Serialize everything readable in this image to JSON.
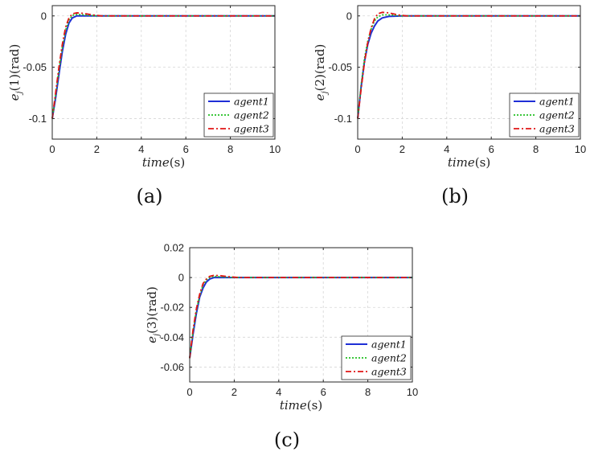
{
  "chart_data": [
    {
      "type": "line",
      "caption": "(a)",
      "xlabel": "time(s)",
      "xlabel_parts": [
        "time",
        "(s)"
      ],
      "ylabel": "e_j(1)(rad)",
      "ylabel_parts": [
        "e",
        "j",
        "(1)(rad)"
      ],
      "xlim": [
        0,
        10
      ],
      "ylim": [
        -0.12,
        0.01
      ],
      "xticks": [
        0,
        2,
        4,
        6,
        8,
        10
      ],
      "xtick_labels": [
        "0",
        "2",
        "4",
        "6",
        "8",
        "10"
      ],
      "yticks": [
        -0.1,
        -0.05,
        0
      ],
      "ytick_labels": [
        "-0.1",
        "-0.05",
        "0"
      ],
      "grid": true,
      "legend_position": "bottom-right",
      "series": [
        {
          "name": "agent1",
          "color": "#1f2fd6",
          "style": "solid",
          "x": [
            0,
            0.15,
            0.3,
            0.45,
            0.6,
            0.75,
            0.9,
            1.1,
            1.4,
            2,
            10
          ],
          "y": [
            -0.1,
            -0.08,
            -0.057,
            -0.035,
            -0.018,
            -0.007,
            -0.002,
            0,
            0,
            0,
            0
          ]
        },
        {
          "name": "agent2",
          "color": "#22c022",
          "style": "dotted",
          "x": [
            0,
            0.15,
            0.3,
            0.45,
            0.6,
            0.75,
            0.9,
            1.1,
            1.4,
            2,
            10
          ],
          "y": [
            -0.1,
            -0.077,
            -0.053,
            -0.031,
            -0.014,
            -0.004,
            0.0005,
            0.0015,
            0.001,
            0,
            0
          ]
        },
        {
          "name": "agent3",
          "color": "#e01515",
          "style": "dashdot",
          "x": [
            0,
            0.15,
            0.3,
            0.45,
            0.6,
            0.75,
            0.9,
            1.1,
            1.4,
            1.8,
            2.2,
            10
          ],
          "y": [
            -0.1,
            -0.075,
            -0.05,
            -0.028,
            -0.011,
            -0.002,
            0.002,
            0.003,
            0.0025,
            0.001,
            0,
            0
          ]
        }
      ]
    },
    {
      "type": "line",
      "caption": "(b)",
      "xlabel": "time(s)",
      "xlabel_parts": [
        "time",
        "(s)"
      ],
      "ylabel": "e_j(2)(rad)",
      "ylabel_parts": [
        "e",
        "j",
        "(2)(rad)"
      ],
      "xlim": [
        0,
        10
      ],
      "ylim": [
        -0.12,
        0.01
      ],
      "xticks": [
        0,
        2,
        4,
        6,
        8,
        10
      ],
      "xtick_labels": [
        "0",
        "2",
        "4",
        "6",
        "8",
        "10"
      ],
      "yticks": [
        -0.1,
        -0.05,
        0
      ],
      "ytick_labels": [
        "-0.1",
        "-0.05",
        "0"
      ],
      "grid": true,
      "legend_position": "bottom-right",
      "series": [
        {
          "name": "agent1",
          "color": "#1f2fd6",
          "style": "solid",
          "x": [
            0,
            0.15,
            0.3,
            0.45,
            0.6,
            0.75,
            0.9,
            1.1,
            1.4,
            2,
            10
          ],
          "y": [
            -0.1,
            -0.07,
            -0.045,
            -0.028,
            -0.017,
            -0.01,
            -0.005,
            -0.002,
            -0.0005,
            0,
            0
          ]
        },
        {
          "name": "agent2",
          "color": "#22c022",
          "style": "dotted",
          "x": [
            0,
            0.15,
            0.3,
            0.45,
            0.6,
            0.75,
            0.9,
            1.1,
            1.4,
            2,
            10
          ],
          "y": [
            -0.1,
            -0.068,
            -0.042,
            -0.025,
            -0.013,
            -0.005,
            -0.001,
            0.001,
            0.001,
            0,
            0
          ]
        },
        {
          "name": "agent3",
          "color": "#e01515",
          "style": "dashdot",
          "x": [
            0,
            0.15,
            0.3,
            0.45,
            0.6,
            0.75,
            0.9,
            1.1,
            1.4,
            1.8,
            2.2,
            10
          ],
          "y": [
            -0.1,
            -0.072,
            -0.046,
            -0.026,
            -0.012,
            -0.003,
            0.002,
            0.0035,
            0.003,
            0.001,
            0,
            0
          ]
        }
      ]
    },
    {
      "type": "line",
      "caption": "(c)",
      "xlabel": "time(s)",
      "xlabel_parts": [
        "time",
        "(s)"
      ],
      "ylabel": "e_j(3)(rad)",
      "ylabel_parts": [
        "e",
        "j",
        "(3)(rad)"
      ],
      "xlim": [
        0,
        10
      ],
      "ylim": [
        -0.07,
        0.02
      ],
      "xticks": [
        0,
        2,
        4,
        6,
        8,
        10
      ],
      "xtick_labels": [
        "0",
        "2",
        "4",
        "6",
        "8",
        "10"
      ],
      "yticks": [
        -0.06,
        -0.04,
        -0.02,
        0,
        0.02
      ],
      "ytick_labels": [
        "-0.06",
        "-0.04",
        "-0.02",
        "0",
        "0.02"
      ],
      "grid": true,
      "legend_position": "bottom-right",
      "series": [
        {
          "name": "agent1",
          "color": "#1f2fd6",
          "style": "solid",
          "x": [
            0,
            0.15,
            0.3,
            0.45,
            0.6,
            0.75,
            0.9,
            1.1,
            1.4,
            2,
            10
          ],
          "y": [
            -0.054,
            -0.038,
            -0.024,
            -0.013,
            -0.007,
            -0.003,
            -0.001,
            0,
            0,
            0,
            0
          ]
        },
        {
          "name": "agent2",
          "color": "#22c022",
          "style": "dotted",
          "x": [
            0,
            0.15,
            0.3,
            0.45,
            0.6,
            0.75,
            0.9,
            1.1,
            1.4,
            2,
            10
          ],
          "y": [
            -0.054,
            -0.036,
            -0.022,
            -0.012,
            -0.005,
            -0.0015,
            0,
            0.0008,
            0.0005,
            0,
            0
          ]
        },
        {
          "name": "agent3",
          "color": "#e01515",
          "style": "dashdot",
          "x": [
            0,
            0.15,
            0.3,
            0.45,
            0.6,
            0.75,
            0.9,
            1.1,
            1.4,
            1.8,
            2.2,
            10
          ],
          "y": [
            -0.054,
            -0.035,
            -0.021,
            -0.011,
            -0.004,
            -0.001,
            0.0008,
            0.0015,
            0.0012,
            0.0005,
            0,
            0
          ]
        }
      ]
    }
  ]
}
